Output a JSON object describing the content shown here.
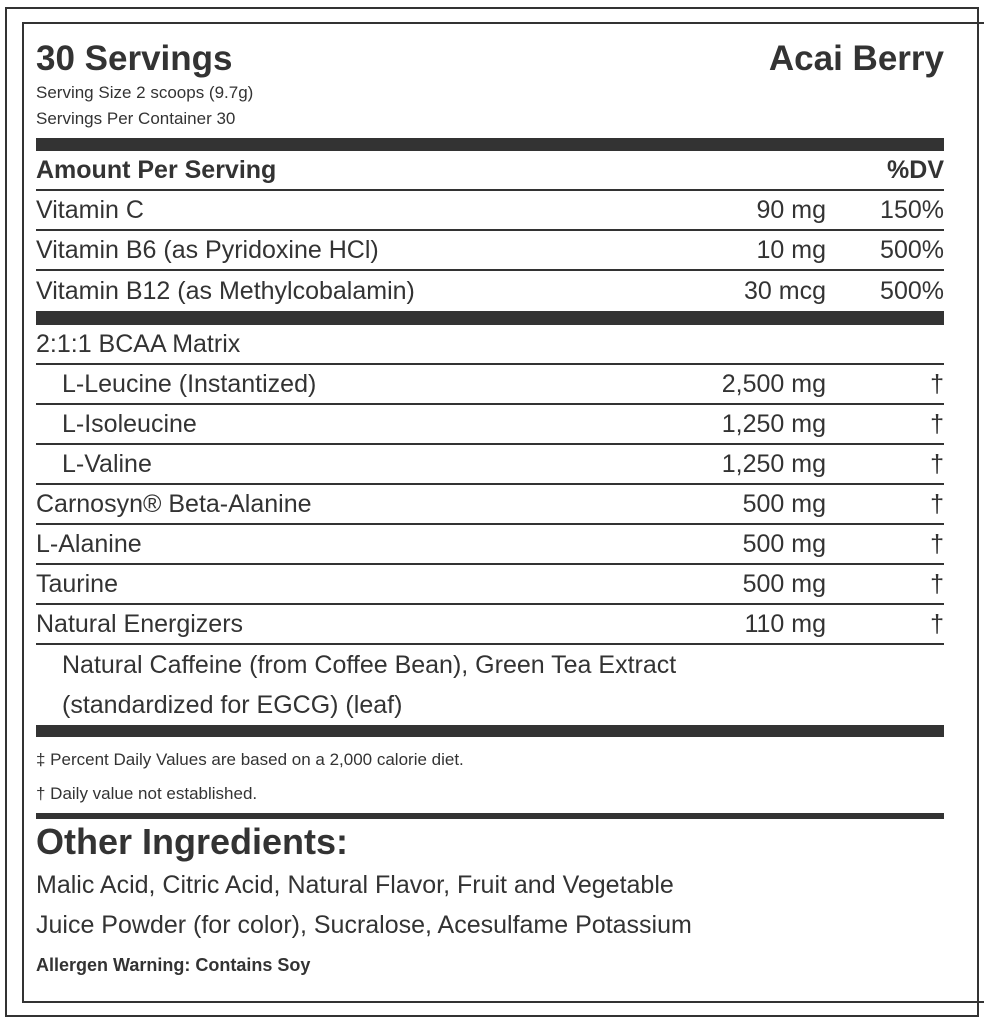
{
  "header": {
    "title": "30 Servings",
    "flavor": "Acai Berry",
    "serving_size": "Serving Size 2 scoops (9.7g)",
    "servings_per_container": "Servings Per Container 30"
  },
  "table_header": {
    "amount_label": "Amount Per Serving",
    "dv_label": "%DV"
  },
  "vitamins": [
    {
      "name": "Vitamin C",
      "amount": "90 mg",
      "dv": "150%"
    },
    {
      "name": "Vitamin B6 (as Pyridoxine HCl)",
      "amount": "10 mg",
      "dv": "500%"
    },
    {
      "name": "Vitamin B12 (as Methylcobalamin)",
      "amount": "30 mcg",
      "dv": "500%"
    }
  ],
  "blend_title": "2:1:1 BCAA Matrix",
  "blend": [
    {
      "name": "L-Leucine (Instantized)",
      "amount": "2,500 mg",
      "dv": "†"
    },
    {
      "name": "L-Isoleucine",
      "amount": "1,250 mg",
      "dv": "†"
    },
    {
      "name": "L-Valine",
      "amount": "1,250 mg",
      "dv": "†"
    }
  ],
  "ingredients": [
    {
      "name": "Carnosyn® Beta-Alanine",
      "amount": "500 mg",
      "dv": "†"
    },
    {
      "name": "L-Alanine",
      "amount": "500 mg",
      "dv": "†"
    },
    {
      "name": "Taurine",
      "amount": "500 mg",
      "dv": "†"
    },
    {
      "name": "Natural Energizers",
      "amount": "110 mg",
      "dv": "†"
    }
  ],
  "energizers_desc": [
    "Natural Caffeine (from Coffee Bean), Green Tea Extract",
    "(standardized for EGCG) (leaf)"
  ],
  "footnotes": [
    "‡ Percent Daily Values are based on a 2,000 calorie diet.",
    "† Daily value not established."
  ],
  "other_ingredients": {
    "heading": "Other Ingredients:",
    "lines": [
      "Malic Acid, Citric Acid, Natural Flavor, Fruit and Vegetable",
      "Juice Powder (for color), Sucralose, Acesulfame Potassium"
    ]
  },
  "allergen": "Allergen Warning: Contains Soy"
}
